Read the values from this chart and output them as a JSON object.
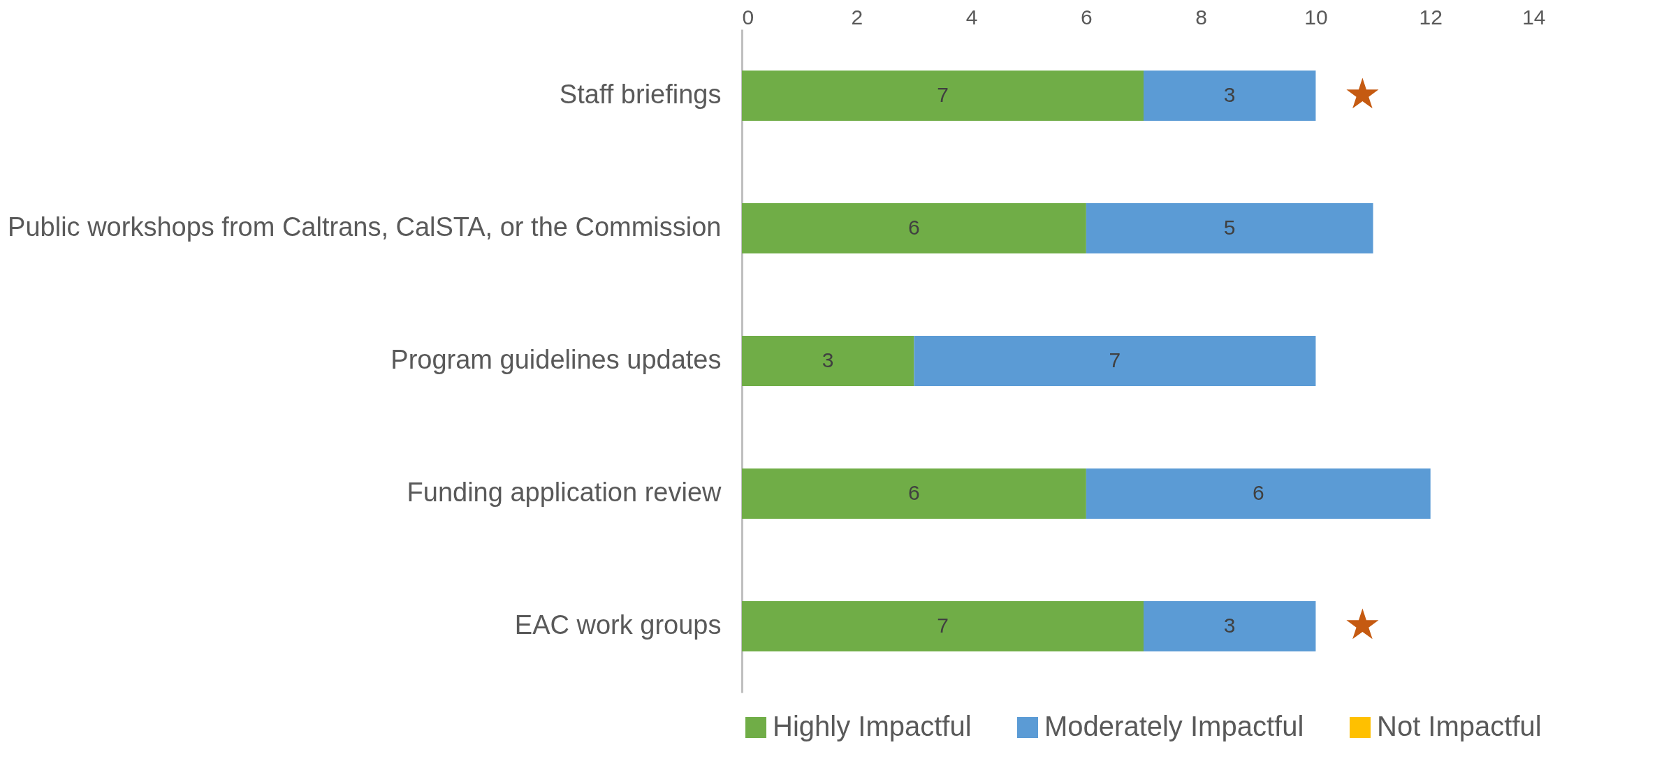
{
  "chart_data": {
    "type": "bar",
    "orientation": "horizontal",
    "stacked": true,
    "legend": "bottom",
    "grid": false,
    "categories": [
      "Staff briefings",
      "Public workshops from Caltrans, CalSTA, or the Commission",
      "Program guidelines updates",
      "Funding application review",
      "EAC work groups"
    ],
    "series": [
      {
        "name": "Highly Impactful",
        "color": "#70ad47",
        "values": [
          7,
          6,
          3,
          6,
          7
        ],
        "value_labels": [
          "7",
          "6",
          "3",
          "6",
          "7"
        ]
      },
      {
        "name": "Moderately Impactful",
        "color": "#5b9bd5",
        "values": [
          3,
          5,
          7,
          6,
          3
        ],
        "value_labels": [
          "3",
          "5",
          "7",
          "6",
          "3"
        ]
      },
      {
        "name": "Not Impactful",
        "color": "#ffc000",
        "values": [
          0,
          0,
          0,
          0,
          0
        ],
        "value_labels": [
          null,
          null,
          null,
          null,
          null
        ]
      }
    ],
    "xlim": [
      0,
      14
    ],
    "xticks": [
      0,
      2,
      4,
      6,
      8,
      10,
      12,
      14
    ],
    "annotations": [
      {
        "text": "★",
        "x": 10,
        "y": "Staff briefings"
      },
      {
        "text": "★",
        "x": 10,
        "y": "EAC work groups"
      }
    ]
  }
}
